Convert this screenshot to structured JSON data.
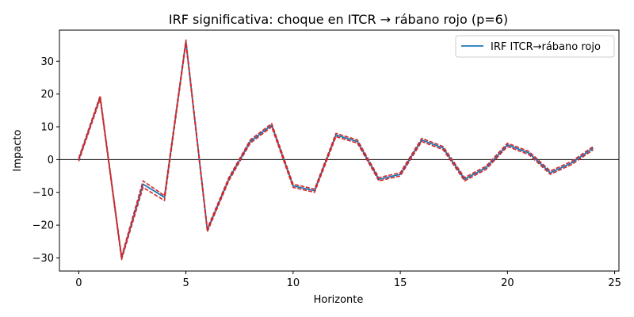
{
  "chart_data": {
    "type": "line",
    "title": "IRF significativa: choque en ITCR → rábano rojo (p=6)",
    "xlabel": "Horizonte",
    "ylabel": "Impacto",
    "xlim": [
      -0.9,
      25.2
    ],
    "ylim": [
      -34,
      39.5
    ],
    "xticks": [
      0,
      5,
      10,
      15,
      20,
      25
    ],
    "yticks": [
      -30,
      -20,
      -10,
      0,
      10,
      20,
      30
    ],
    "ytick_labels": [
      "−30",
      "−20",
      "−10",
      "0",
      "10",
      "20",
      "30"
    ],
    "grid": false,
    "legend_position": "top-right",
    "zero_line": true,
    "x": [
      0,
      1,
      2,
      3,
      4,
      5,
      6,
      7,
      8,
      9,
      10,
      11,
      12,
      13,
      14,
      15,
      16,
      17,
      18,
      19,
      20,
      21,
      22,
      23,
      24
    ],
    "series": [
      {
        "name": "IRF ITCR→rábano rojo",
        "color": "#1f77b4",
        "style": "solid",
        "values": [
          0,
          19,
          -30,
          -7.5,
          -11.5,
          36,
          -21.5,
          -6,
          5.5,
          10.5,
          -8,
          -9.5,
          7.5,
          5.5,
          -6,
          -4.5,
          6,
          3.5,
          -6,
          -2.5,
          4.5,
          2,
          -4,
          -1,
          3.5
        ]
      },
      {
        "color": "#d62728",
        "style": "dashed",
        "values": [
          0.5,
          19.5,
          -29.5,
          -6.5,
          -11,
          36.5,
          -21,
          -5.5,
          6,
          11,
          -7.5,
          -9,
          8,
          6,
          -5.5,
          -4,
          6.5,
          4,
          -5.5,
          -2,
          5,
          2.5,
          -3.5,
          -0.5,
          4
        ]
      },
      {
        "color": "#d62728",
        "style": "dashed",
        "values": [
          -0.5,
          18.5,
          -30.5,
          -8.5,
          -12.5,
          35.5,
          -22,
          -6.5,
          5,
          10,
          -8.5,
          -10,
          7,
          5,
          -6.5,
          -5,
          5.5,
          3,
          -6.5,
          -3,
          4,
          1.5,
          -4.5,
          -1.5,
          3
        ]
      }
    ]
  }
}
